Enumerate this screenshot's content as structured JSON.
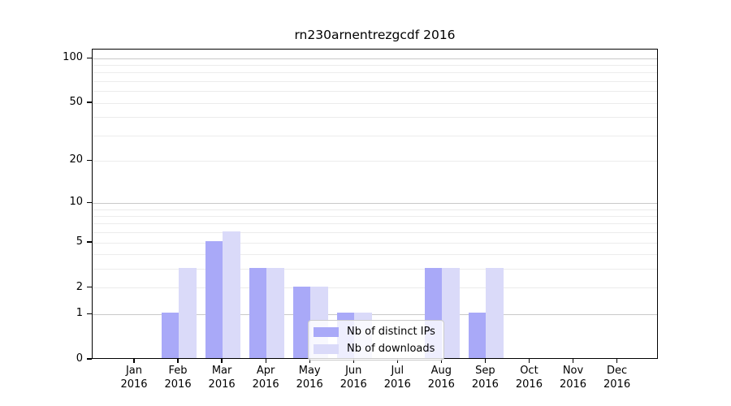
{
  "chart_data": {
    "type": "bar",
    "title": "rn230arnentrezgcdf 2016",
    "categories": [
      "Jan",
      "Feb",
      "Mar",
      "Apr",
      "May",
      "Jun",
      "Jul",
      "Aug",
      "Sep",
      "Oct",
      "Nov",
      "Dec"
    ],
    "year_label": "2016",
    "series": [
      {
        "name": "Nb of distinct IPs",
        "color": "#a9a9f8",
        "values": [
          0,
          1,
          5,
          3,
          2,
          1,
          0,
          3,
          1,
          0,
          0,
          0
        ]
      },
      {
        "name": "Nb of downloads",
        "color": "#dadaf9",
        "values": [
          0,
          3,
          6,
          3,
          2,
          1,
          0,
          3,
          3,
          0,
          0,
          0
        ]
      }
    ],
    "yticks": [
      0,
      1,
      2,
      5,
      10,
      20,
      50,
      100
    ],
    "scale": "log1p",
    "ylim": [
      0,
      115
    ],
    "grid": {
      "major": [
        1,
        10,
        100
      ],
      "minor": [
        2,
        3,
        4,
        5,
        6,
        7,
        8,
        9,
        20,
        30,
        40,
        50,
        60,
        70,
        80,
        90
      ],
      "major_color": "#c9c9c9",
      "minor_color": "#ececec"
    },
    "legend": {
      "position": "lower center",
      "entries": [
        "Nb of distinct IPs",
        "Nb of downloads"
      ]
    },
    "xlabel": "",
    "ylabel": ""
  }
}
